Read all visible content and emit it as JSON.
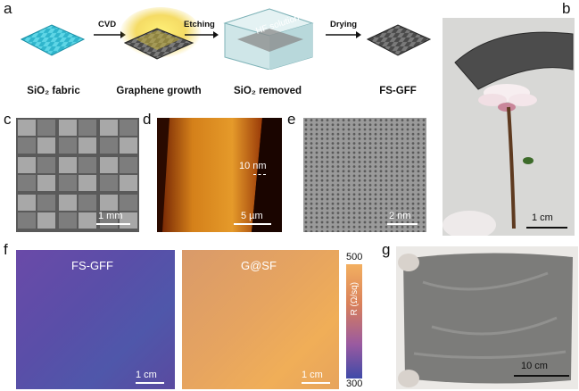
{
  "panel_labels": {
    "a": "a",
    "b": "b",
    "c": "c",
    "d": "d",
    "e": "e",
    "f": "f",
    "g": "g"
  },
  "schematic": {
    "steps": [
      "SiO₂ fabric",
      "Graphene growth",
      "SiO₂ removed",
      "FS-GFF"
    ],
    "arrows": [
      "CVD",
      "Etching",
      "Drying"
    ],
    "beaker_text": "HF solution"
  },
  "scale_bars": {
    "b": "1 cm",
    "c": "1 mm",
    "d_main": "5 µm",
    "d_height": "10 nm",
    "e": "2 nm",
    "f_left": "1 cm",
    "f_right": "1 cm",
    "g": "10 cm"
  },
  "maps": {
    "left_title": "FS-GFF",
    "right_title": "G@SF",
    "colorbar_max": "500",
    "colorbar_min": "300",
    "colorbar_label": "R (Ω/sq)"
  },
  "colors": {
    "fabric_blue": "#3fc3d6",
    "fabric_dark": "#555555",
    "map_purple": "#5a4aa0",
    "map_orange": "#e8a25a",
    "afm_gold": "#d98a1a"
  }
}
